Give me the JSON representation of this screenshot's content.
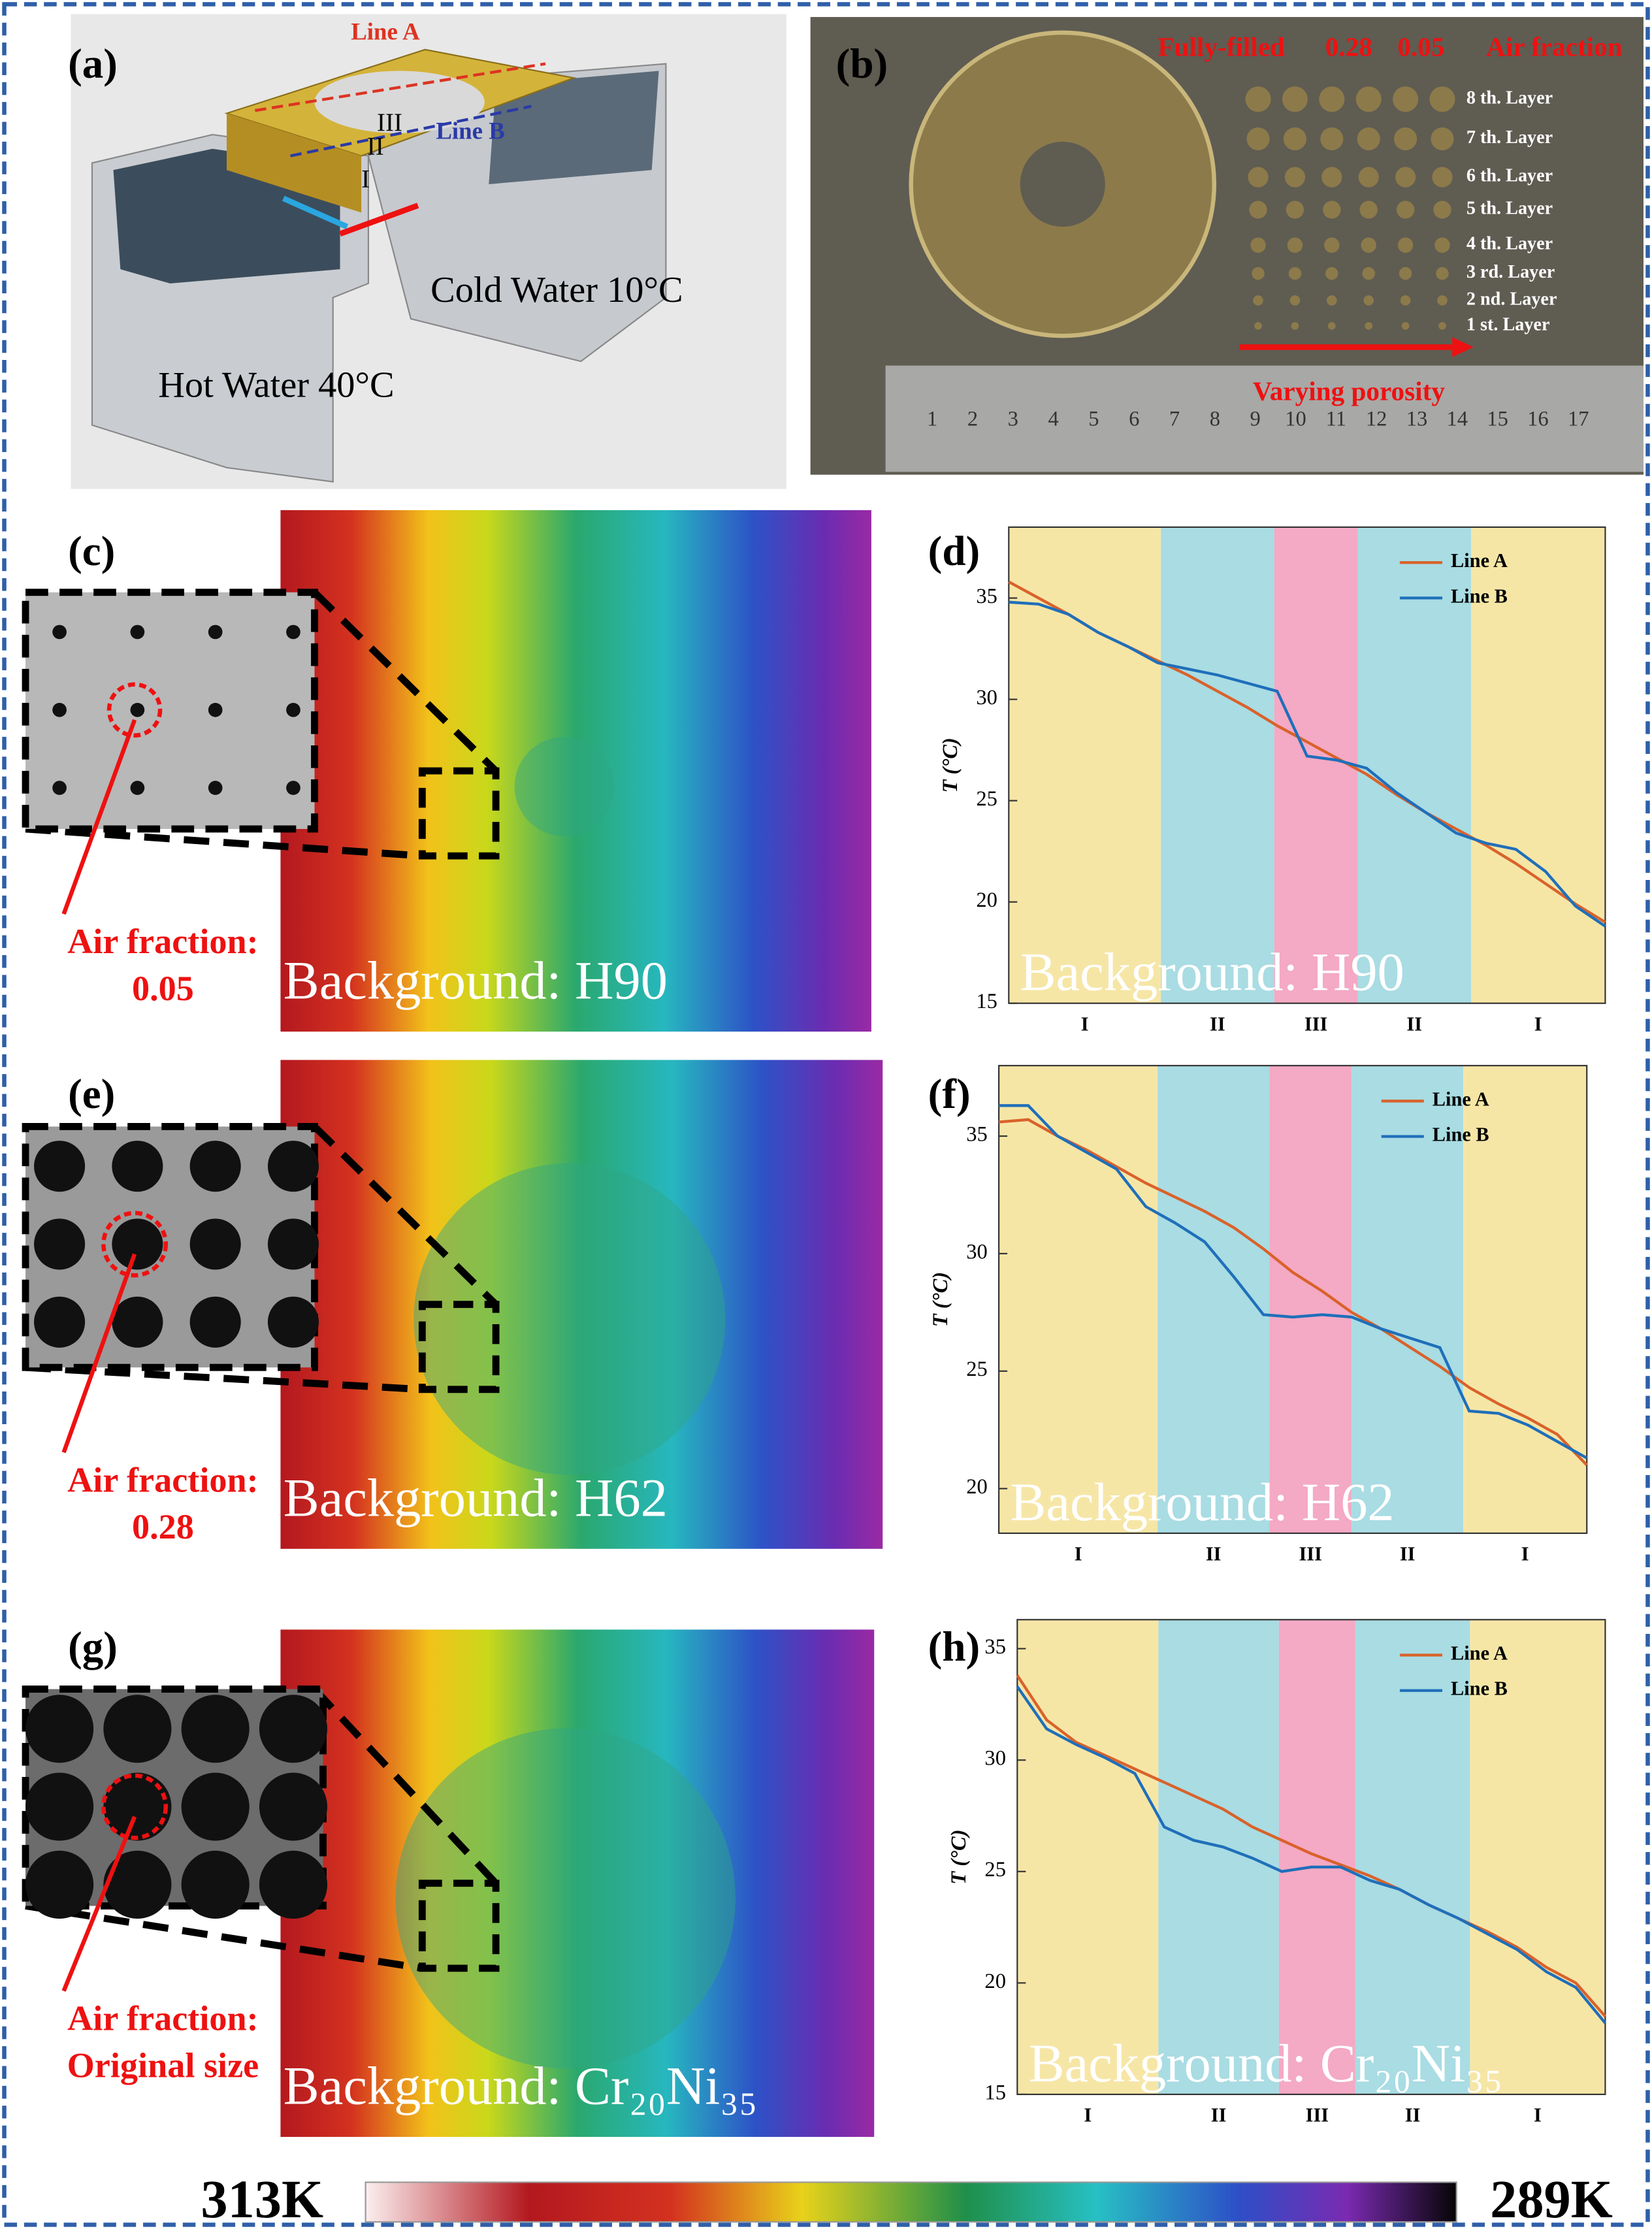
{
  "panels": {
    "labels": [
      "(a)",
      "(b)",
      "(c)",
      "(d)",
      "(e)",
      "(f)",
      "(g)",
      "(h)"
    ]
  },
  "a": {
    "line_a": "Line A",
    "line_b": "Line B",
    "regions": [
      "I",
      "II",
      "III"
    ],
    "cold": "Cold Water 10°C",
    "hot": "Hot Water 40°C"
  },
  "b": {
    "headers": [
      "Fully-filled",
      "0.28",
      "0.05",
      "Air fraction"
    ],
    "layers": [
      "8 th. Layer",
      "7 th. Layer",
      "6 th. Layer",
      "5 th. Layer",
      "4 th. Layer",
      "3 rd. Layer",
      "2 nd. Layer",
      "1 st. Layer"
    ],
    "arrow": "Varying porosity",
    "ruler": [
      "1",
      "2",
      "3",
      "4",
      "5",
      "6",
      "7",
      "8",
      "9",
      "10",
      "11",
      "12",
      "13",
      "14",
      "15",
      "16",
      "17"
    ]
  },
  "images": [
    {
      "caption": "Air fraction:",
      "value": "0.05",
      "background": "Background: H90"
    },
    {
      "caption": "Air fraction:",
      "value": "0.28",
      "background": "Background: H62"
    },
    {
      "caption": "Air fraction:",
      "value": "Original size",
      "background": "Background: Cr₂₀Ni₃₅"
    }
  ],
  "colorbar": {
    "max": "313K",
    "min": "289K"
  },
  "chart_data": [
    {
      "type": "line",
      "y_label": "T (°C)",
      "ylim": [
        15,
        38.5
      ],
      "yticks": [
        15,
        20,
        25,
        30,
        35
      ],
      "annotation": "Background: H90",
      "regions": [
        {
          "label": "I",
          "color": "#f6e6a6",
          "span": [
            0,
            5.1
          ]
        },
        {
          "label": "II",
          "color": "#a9dce3",
          "span": [
            5.1,
            8.9
          ]
        },
        {
          "label": "III",
          "color": "#f4a9c4",
          "span": [
            8.9,
            11.7
          ]
        },
        {
          "label": "II",
          "color": "#a9dce3",
          "span": [
            11.7,
            15.5
          ]
        },
        {
          "label": "I",
          "color": "#f6e6a6",
          "span": [
            15.5,
            20
          ]
        }
      ],
      "series": [
        {
          "name": "Line A",
          "color": "#d9622b",
          "values": [
            35.8,
            35,
            34.2,
            33.3,
            32.6,
            31.9,
            31.2,
            30.4,
            29.6,
            28.7,
            27.9,
            27.1,
            26.3,
            25.3,
            24.4,
            23.6,
            22.8,
            21.9,
            20.9,
            19.9,
            19.0
          ]
        },
        {
          "name": "Line B",
          "color": "#1f6fba",
          "values": [
            34.8,
            34.7,
            34.2,
            33.3,
            32.6,
            31.8,
            31.5,
            31.2,
            30.8,
            30.4,
            27.2,
            27.0,
            26.6,
            25.4,
            24.4,
            23.4,
            22.9,
            22.6,
            21.5,
            19.8,
            18.8
          ]
        }
      ]
    },
    {
      "type": "line",
      "y_label": "T (°C)",
      "ylim": [
        18.1,
        38
      ],
      "yticks": [
        20,
        25,
        30,
        35
      ],
      "annotation": "Background: H62",
      "regions": [
        {
          "label": "I",
          "color": "#f6e6a6",
          "span": [
            0,
            5.4
          ]
        },
        {
          "label": "II",
          "color": "#a9dce3",
          "span": [
            5.4,
            9.2
          ]
        },
        {
          "label": "III",
          "color": "#f4a9c4",
          "span": [
            9.2,
            12
          ]
        },
        {
          "label": "II",
          "color": "#a9dce3",
          "span": [
            12,
            15.8
          ]
        },
        {
          "label": "I",
          "color": "#f6e6a6",
          "span": [
            15.8,
            20
          ]
        }
      ],
      "series": [
        {
          "name": "Line A",
          "color": "#d9622b",
          "values": [
            35.6,
            35.7,
            35,
            34.4,
            33.7,
            33,
            32.4,
            31.8,
            31.1,
            30.2,
            29.2,
            28.4,
            27.5,
            26.8,
            26,
            25.2,
            24.3,
            23.6,
            23,
            22.3,
            21.0
          ]
        },
        {
          "name": "Line B",
          "color": "#1f6fba",
          "values": [
            36.3,
            36.3,
            35,
            34.3,
            33.6,
            32,
            31.3,
            30.5,
            29,
            27.4,
            27.3,
            27.4,
            27.3,
            26.8,
            26.4,
            26,
            23.3,
            23.2,
            22.7,
            22,
            21.3
          ]
        }
      ]
    },
    {
      "type": "line",
      "y_label": "T (°C)",
      "ylim": [
        15,
        36.3
      ],
      "yticks": [
        15,
        20,
        25,
        30,
        35
      ],
      "annotation": "Background: Cr₂₀Ni₃₅",
      "regions": [
        {
          "label": "I",
          "color": "#f6e6a6",
          "span": [
            0,
            4.8
          ]
        },
        {
          "label": "II",
          "color": "#a9dce3",
          "span": [
            4.8,
            8.9
          ]
        },
        {
          "label": "III",
          "color": "#f4a9c4",
          "span": [
            8.9,
            11.5
          ]
        },
        {
          "label": "II",
          "color": "#a9dce3",
          "span": [
            11.5,
            15.4
          ]
        },
        {
          "label": "I",
          "color": "#f6e6a6",
          "span": [
            15.4,
            20
          ]
        }
      ],
      "series": [
        {
          "name": "Line A",
          "color": "#d9622b",
          "values": [
            33.8,
            31.8,
            30.8,
            30.2,
            29.6,
            29,
            28.4,
            27.8,
            27,
            26.4,
            25.8,
            25.3,
            24.8,
            24.2,
            23.5,
            22.9,
            22.3,
            21.6,
            20.7,
            20,
            18.5
          ]
        },
        {
          "name": "Line B",
          "color": "#1f6fba",
          "values": [
            33.3,
            31.4,
            30.7,
            30.1,
            29.4,
            27,
            26.4,
            26.1,
            25.6,
            25,
            25.2,
            25.2,
            24.6,
            24.2,
            23.5,
            22.9,
            22.2,
            21.5,
            20.5,
            19.8,
            18.2
          ]
        }
      ]
    }
  ]
}
